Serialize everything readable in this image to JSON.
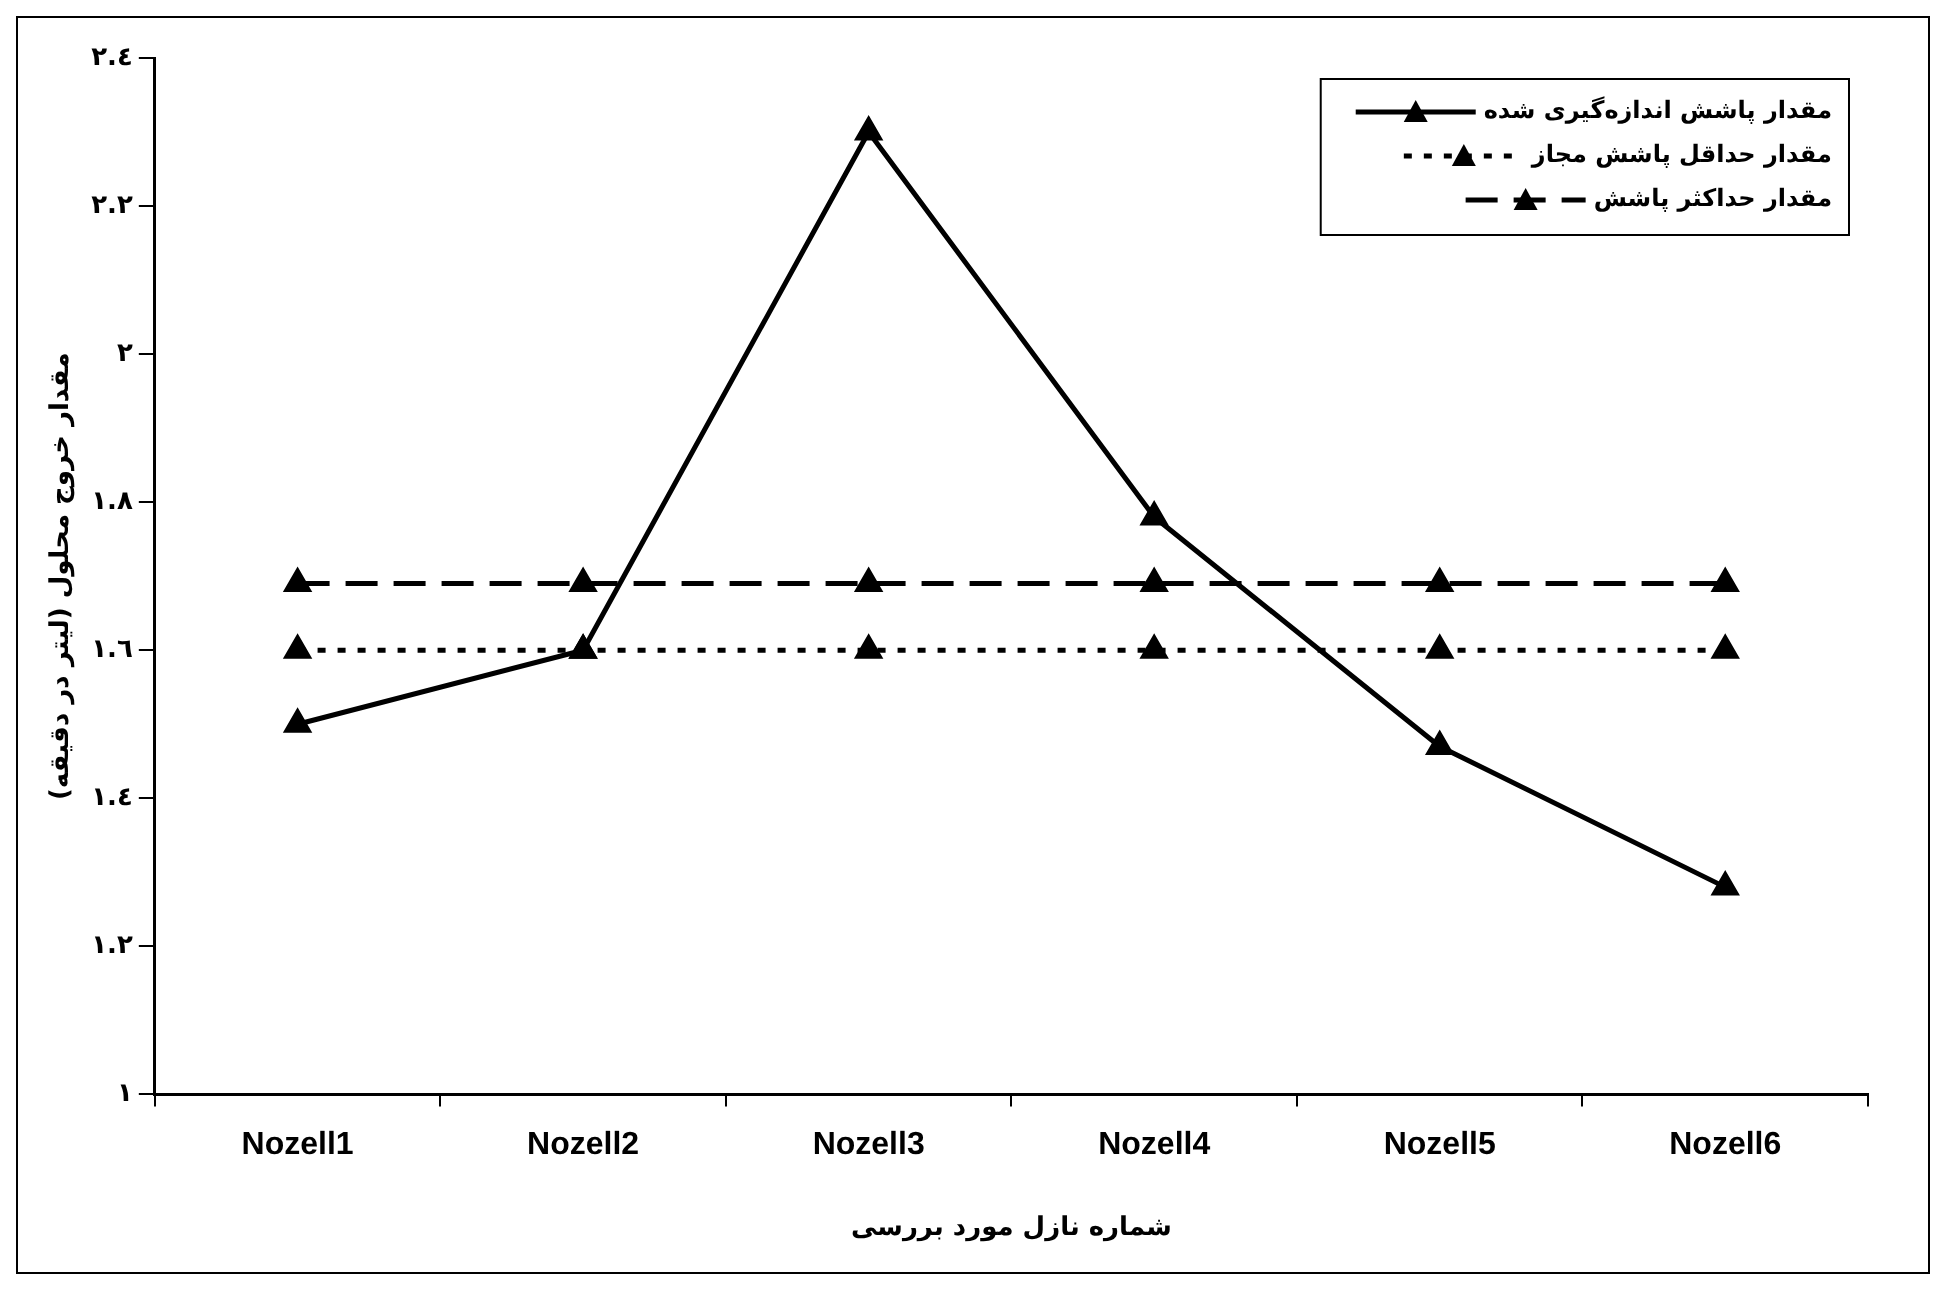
{
  "chart_data": {
    "type": "line",
    "categories": [
      "Nozell1",
      "Nozell2",
      "Nozell3",
      "Nozell4",
      "Nozell5",
      "Nozell6"
    ],
    "series": [
      {
        "name": "مقدار پاشش اندازه‌گیری شده",
        "color": "#000000",
        "line_style": "solid",
        "values": [
          1.5,
          1.6,
          2.3,
          1.78,
          1.47,
          1.28
        ]
      },
      {
        "name": "مقدار حداقل پاشش مجاز",
        "color": "#000000",
        "line_style": "dotted",
        "values": [
          1.6,
          1.6,
          1.6,
          1.6,
          1.6,
          1.6
        ]
      },
      {
        "name": "مقدار حداکثر پاشش",
        "color": "#000000",
        "line_style": "dashed",
        "values": [
          1.69,
          1.69,
          1.69,
          1.69,
          1.69,
          1.69
        ]
      }
    ],
    "xlabel": "شماره نازل مورد بررسی",
    "ylabel": "مقدار خروج محلول (لیتر در دقیقه)",
    "ylim": [
      1,
      2.4
    ],
    "yticks": [
      {
        "value": 1,
        "label": "١"
      },
      {
        "value": 1.2,
        "label": "١.٢"
      },
      {
        "value": 1.4,
        "label": "١.٤"
      },
      {
        "value": 1.6,
        "label": "١.٦"
      },
      {
        "value": 1.8,
        "label": "١.٨"
      },
      {
        "value": 2,
        "label": "٢"
      },
      {
        "value": 2.2,
        "label": "٢.٢"
      },
      {
        "value": 2.4,
        "label": "٢.٤"
      }
    ],
    "marker": "triangle",
    "legend": "top right",
    "grid": false
  }
}
